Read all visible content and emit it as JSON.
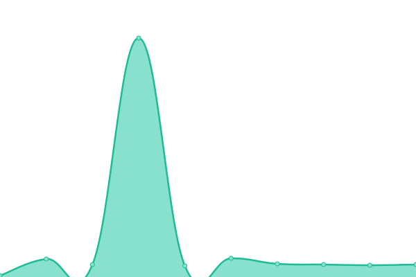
{
  "chart_data": {
    "type": "area",
    "categories": [
      null,
      null,
      null,
      null,
      null,
      null,
      null,
      null,
      null,
      null
    ],
    "values": [
      2,
      26,
      18,
      345,
      16,
      27,
      19,
      18,
      17,
      18
    ],
    "ylim": [
      0,
      400
    ],
    "color": "#1dbb96",
    "fill": "#88e1cd"
  }
}
